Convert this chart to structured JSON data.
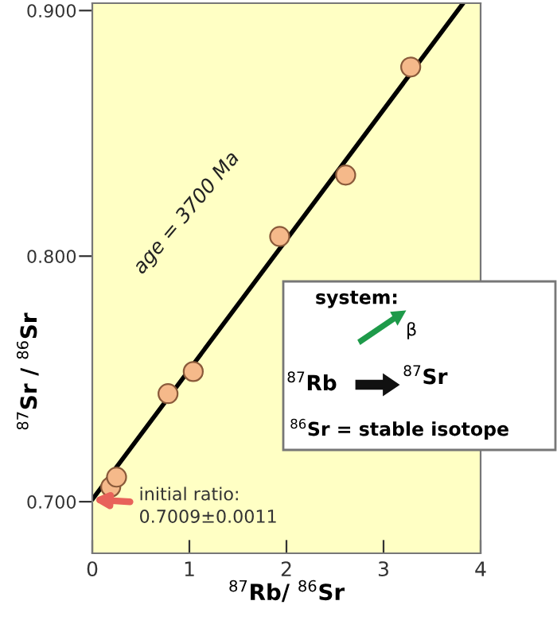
{
  "chart_data": {
    "type": "scatter",
    "xlabel": "$^{87}$Rb/ $^{86}$Sr",
    "ylabel": "$^{87}$Sr / $^{86}$Sr",
    "xlim": [
      0,
      4
    ],
    "xticks": [
      0,
      1,
      2,
      3,
      4
    ],
    "ylim": [
      0.679,
      0.903
    ],
    "yticks": [
      {
        "value": 0.7,
        "label": "0.700"
      },
      {
        "value": 0.8,
        "label": "0.800"
      },
      {
        "value": 0.9,
        "label": "0.900"
      }
    ],
    "grid": false,
    "marker": "circle",
    "series": [
      {
        "type": "scatter",
        "color": "#f5b98a",
        "x": [
          0.19,
          0.25,
          0.78,
          1.04,
          1.93,
          2.61,
          3.28
        ],
        "values": [
          0.706,
          0.71,
          0.744,
          0.753,
          0.808,
          0.833,
          0.877
        ]
      },
      {
        "type": "line",
        "marker": "none",
        "color": "#000000",
        "x": [
          0,
          3.82
        ],
        "values": [
          0.7009,
          0.903
        ]
      }
    ],
    "annotations": [
      "age = 3700 Ma",
      {
        "text": "initial ratio:\n0.7009±0.0011",
        "x": 0,
        "y": 0.7009
      },
      "system:",
      "β",
      "$^{87}$Rb",
      "$^{87}$Sr",
      "$^{86}$Sr = stable isotope"
    ]
  }
}
